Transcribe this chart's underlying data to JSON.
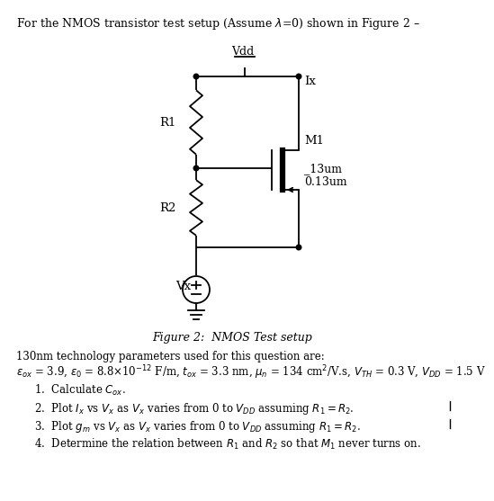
{
  "background": "#ffffff",
  "title": "For the NMOS transistor test setup (Assume λ=0) shown in Figure 2 –",
  "fig_caption": "Figure 2:  NMOS Test setup",
  "param_header": "130nm technology parameters used for this question are:",
  "param_line": "εₒᴿ = 3.9, ε₀ = 8.8×10⁻¹² F/m, tₒᴿ = 3.3 nm, μₙ = 134 cm²/V.s, Vₜᴴ = 0.3 V, Vᴰᴰ = 1.5 V",
  "q1": "1.  Calculate Cₒᴿ.",
  "q2": "2.  Plot Iₓ vs Vₓ as Vₓ varies from 0 to Vᴰᴰ assuming R₁ = R₂.",
  "q3": "3.  Plot gₘ vs Vₓ as Vₓ varies from 0 to Vᴰᴰ assuming R₁ = R₂.",
  "q4": "4.  Determine the relation between R₁ and R₂ so that M₁ never turns on.",
  "vdd": "Vdd",
  "r1": "R1",
  "r2": "R2",
  "ix": "Ix",
  "m1": "M1",
  "w": "13um",
  "l": "0.13um",
  "vx": "Vx"
}
